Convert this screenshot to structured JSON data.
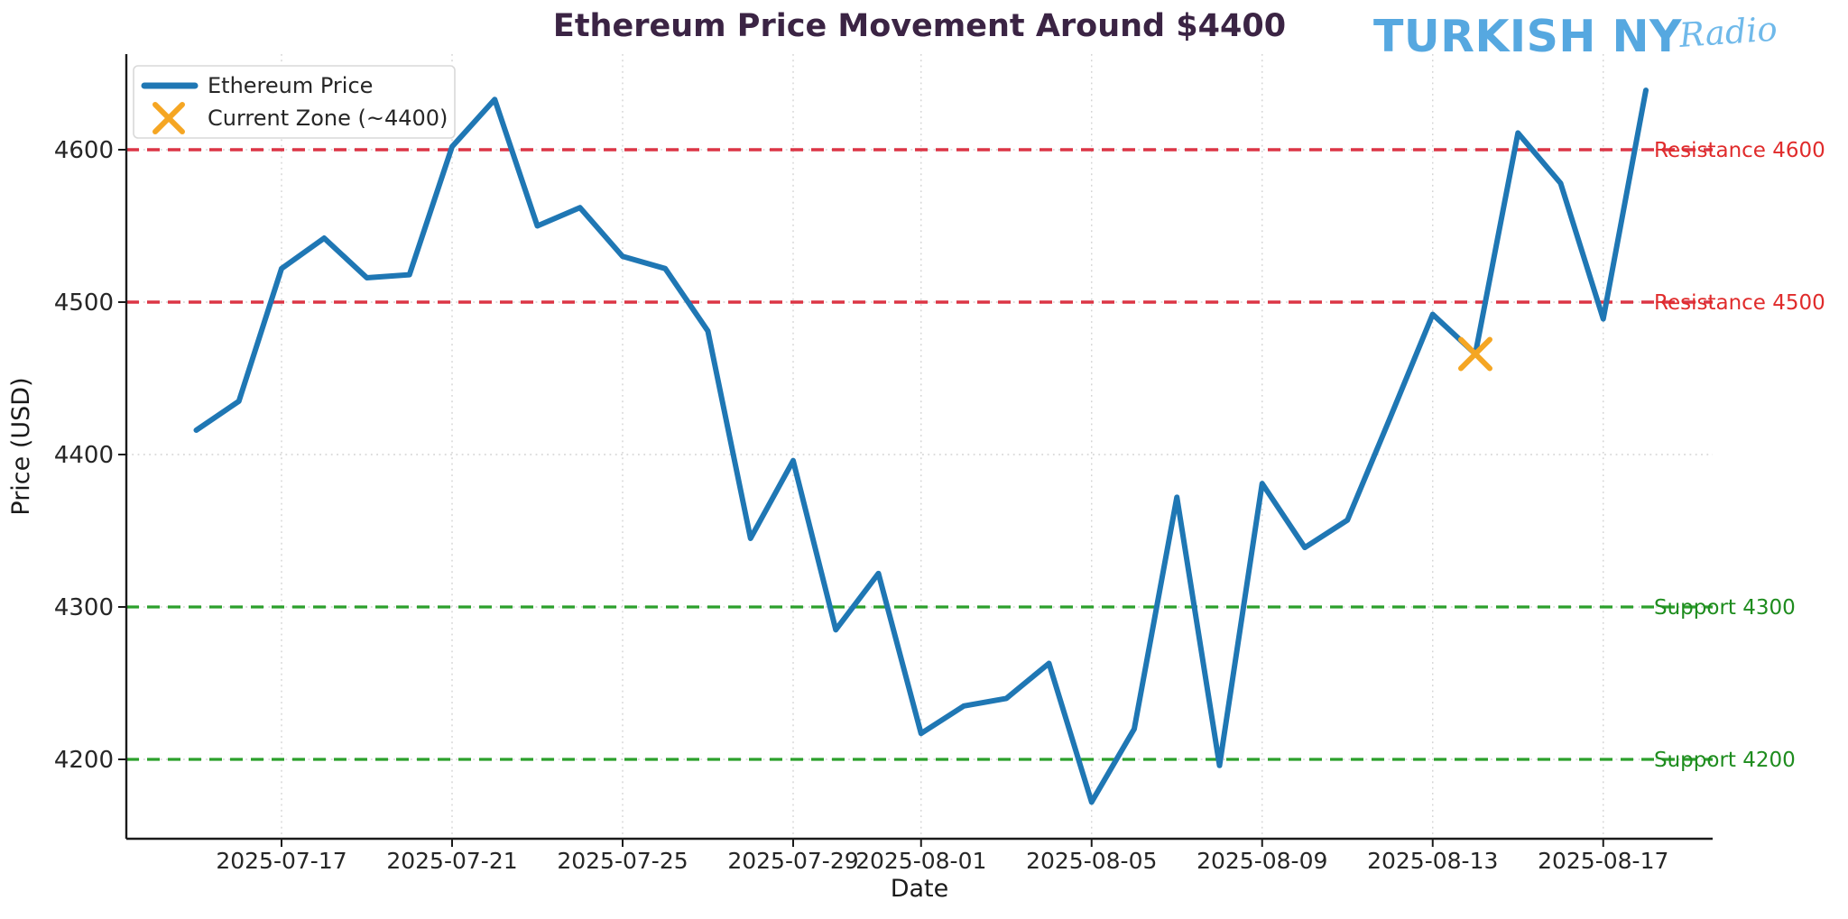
{
  "header": {
    "title": "Ethereum Price Movement Around $4400",
    "title_color": "#3b2444",
    "brand": {
      "name": "TURKISH NY",
      "suffix": "Radio",
      "name_color": "#56a8e0",
      "suffix_color": "#6fb9ea"
    }
  },
  "chart_data": {
    "type": "line",
    "title": "Ethereum Price Movement Around $4400",
    "xlabel": "Date",
    "ylabel": "Price (USD)",
    "grid": true,
    "legend_position": "upper-left",
    "ylim": [
      4148,
      4664
    ],
    "xlim": [
      "2025-07-13",
      "2025-08-19"
    ],
    "x": [
      "2025-07-15",
      "2025-07-16",
      "2025-07-17",
      "2025-07-18",
      "2025-07-19",
      "2025-07-20",
      "2025-07-21",
      "2025-07-22",
      "2025-07-23",
      "2025-07-24",
      "2025-07-25",
      "2025-07-26",
      "2025-07-27",
      "2025-07-28",
      "2025-07-29",
      "2025-07-30",
      "2025-07-31",
      "2025-08-01",
      "2025-08-02",
      "2025-08-03",
      "2025-08-04",
      "2025-08-05",
      "2025-08-06",
      "2025-08-07",
      "2025-08-08",
      "2025-08-09",
      "2025-08-10",
      "2025-08-11",
      "2025-08-12",
      "2025-08-13",
      "2025-08-14",
      "2025-08-15",
      "2025-08-16",
      "2025-08-17",
      "2025-08-18"
    ],
    "series": [
      {
        "name": "Ethereum Price",
        "color": "#1f77b4",
        "values": [
          4416,
          4435,
          4522,
          4542,
          4516,
          4518,
          4602,
          4633,
          4550,
          4562,
          4530,
          4522,
          4481,
          4345,
          4396,
          4285,
          4322,
          4217,
          4235,
          4240,
          4263,
          4172,
          4220,
          4372,
          4196,
          4381,
          4339,
          4357,
          4424,
          4492,
          4466,
          4611,
          4578,
          4489,
          4639
        ]
      }
    ],
    "marker": {
      "name": "Current Zone (~4400)",
      "x": "2025-08-14",
      "y": 4466,
      "color": "#f5a623",
      "shape": "x"
    },
    "yticks": [
      "4200",
      "4300",
      "4400",
      "4500",
      "4600"
    ],
    "xticks": [
      "2025-07-17",
      "2025-07-21",
      "2025-07-25",
      "2025-07-29",
      "2025-08-01",
      "2025-08-05",
      "2025-08-09",
      "2025-08-13",
      "2025-08-17"
    ],
    "annotations": [
      {
        "label": "Resistance 4600",
        "y": 4600,
        "line_color": "#dc3545",
        "text_color": "#e02b2b",
        "kind": "resistance"
      },
      {
        "label": "Resistance 4500",
        "y": 4500,
        "line_color": "#dc3545",
        "text_color": "#e02b2b",
        "kind": "resistance"
      },
      {
        "label": "Support 4300",
        "y": 4300,
        "line_color": "#2ca02c",
        "text_color": "#1e8c1e",
        "kind": "support"
      },
      {
        "label": "Support 4200",
        "y": 4200,
        "line_color": "#2ca02c",
        "text_color": "#1e8c1e",
        "kind": "support"
      }
    ],
    "legend": {
      "entries": [
        {
          "label": "Ethereum Price",
          "swatch": "line",
          "color": "#1f77b4"
        },
        {
          "label": "Current Zone (~4400)",
          "swatch": "x",
          "color": "#f5a623"
        }
      ]
    },
    "axis": {
      "tick_color": "#262626",
      "grid_color": "#c4c4c4",
      "spine_color": "#1a1a1a"
    }
  }
}
